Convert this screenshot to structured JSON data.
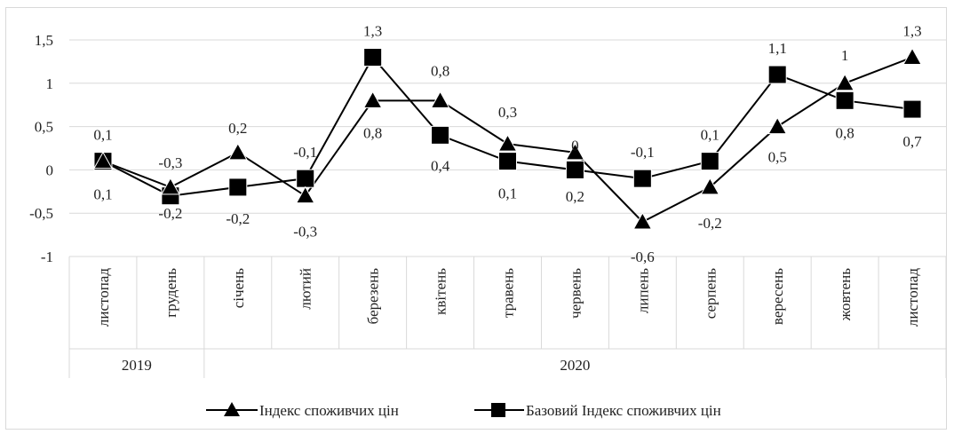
{
  "chart_data": {
    "type": "line",
    "title": "",
    "xlabel": "",
    "ylabel": "",
    "ylim": [
      -1,
      1.5
    ],
    "yticks": [
      "-1",
      "-0,5",
      "0",
      "0,5",
      "1",
      "1,5"
    ],
    "ytick_values": [
      -1,
      -0.5,
      0,
      0.5,
      1,
      1.5
    ],
    "grid": true,
    "legend_position": "bottom",
    "categories": [
      "листопад",
      "грудень",
      "січень",
      "лютий",
      "березень",
      "квітень",
      "травень",
      "червень",
      "липень",
      "серпень",
      "вересень",
      "жовтень",
      "листопад"
    ],
    "year_groups": [
      {
        "label": "2019",
        "span": 2
      },
      {
        "label": "2020",
        "span": 11
      }
    ],
    "series": [
      {
        "name": "Індекс споживчих цін",
        "marker": "triangle",
        "values": [
          0.1,
          -0.2,
          0.2,
          -0.3,
          0.8,
          0.8,
          0.3,
          0.2,
          -0.6,
          -0.2,
          0.5,
          1.0,
          1.3
        ],
        "labels": [
          "0,1",
          "-0,2",
          "0,2",
          "-0,3",
          "0,8",
          "0,8",
          "0,3",
          "0,2",
          "-0,6",
          "-0,2",
          "0,5",
          "1",
          "1,3"
        ],
        "color": "#000000"
      },
      {
        "name": "Базовий Індекс споживчих цін",
        "marker": "square",
        "values": [
          0.1,
          -0.3,
          -0.2,
          -0.1,
          1.3,
          0.4,
          0.1,
          0.0,
          -0.1,
          0.1,
          1.1,
          0.8,
          0.7
        ],
        "labels": [
          "0,1",
          "-0,3",
          "-0,2",
          "-0,1",
          "1,3",
          "0,4",
          "0,1",
          "0",
          "-0,1",
          "0,1",
          "1,1",
          "0,8",
          "0,7"
        ],
        "color": "#000000"
      }
    ]
  }
}
